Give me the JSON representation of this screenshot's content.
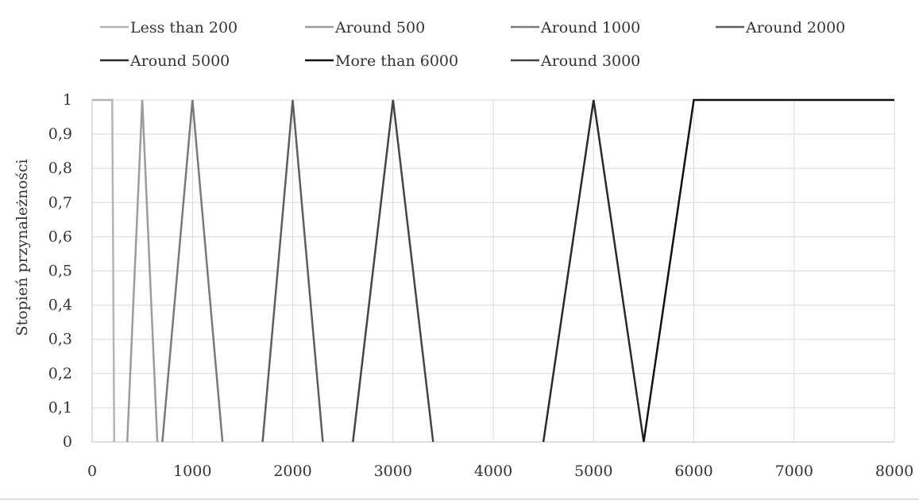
{
  "chart_data": {
    "type": "line",
    "title": "",
    "xlabel": "",
    "ylabel": "Stopień przynależności",
    "xlim": [
      0,
      8000
    ],
    "ylim": [
      0,
      1
    ],
    "x_ticks": [
      0,
      1000,
      2000,
      3000,
      4000,
      5000,
      6000,
      7000,
      8000
    ],
    "x_tick_labels": [
      "0",
      "1000",
      "2000",
      "3000",
      "4000",
      "5000",
      "6000",
      "7000",
      "8000"
    ],
    "y_ticks": [
      0,
      0.1,
      0.2,
      0.3,
      0.4,
      0.5,
      0.6,
      0.7,
      0.8,
      0.9,
      1
    ],
    "y_tick_labels": [
      "0",
      "0,1",
      "0,2",
      "0,3",
      "0,4",
      "0,5",
      "0,6",
      "0,7",
      "0,8",
      "0,9",
      "1"
    ],
    "grid": true,
    "legend_position": "top",
    "series": [
      {
        "name": "Less than 200",
        "color": "#b4b4b4",
        "points": [
          [
            0,
            1
          ],
          [
            200,
            1
          ],
          [
            220,
            0
          ]
        ]
      },
      {
        "name": "Around 500",
        "color": "#9c9c9c",
        "points": [
          [
            350,
            0
          ],
          [
            500,
            1
          ],
          [
            650,
            0
          ]
        ]
      },
      {
        "name": "Around 1000",
        "color": "#7a7a7a",
        "points": [
          [
            700,
            0
          ],
          [
            1000,
            1
          ],
          [
            1300,
            0
          ]
        ]
      },
      {
        "name": "Around 2000",
        "color": "#5e5e5e",
        "points": [
          [
            1700,
            0
          ],
          [
            2000,
            1
          ],
          [
            2300,
            0
          ]
        ]
      },
      {
        "name": "Around 5000",
        "color": "#2a2a2a",
        "points": [
          [
            4500,
            0
          ],
          [
            5000,
            1
          ],
          [
            5500,
            0
          ]
        ]
      },
      {
        "name": "More than 6000",
        "color": "#111111",
        "points": [
          [
            5500,
            0
          ],
          [
            6000,
            1
          ],
          [
            8000,
            1
          ]
        ]
      },
      {
        "name": "Around 3000",
        "color": "#454545",
        "points": [
          [
            2600,
            0
          ],
          [
            3000,
            1
          ],
          [
            3400,
            0
          ]
        ]
      }
    ]
  }
}
